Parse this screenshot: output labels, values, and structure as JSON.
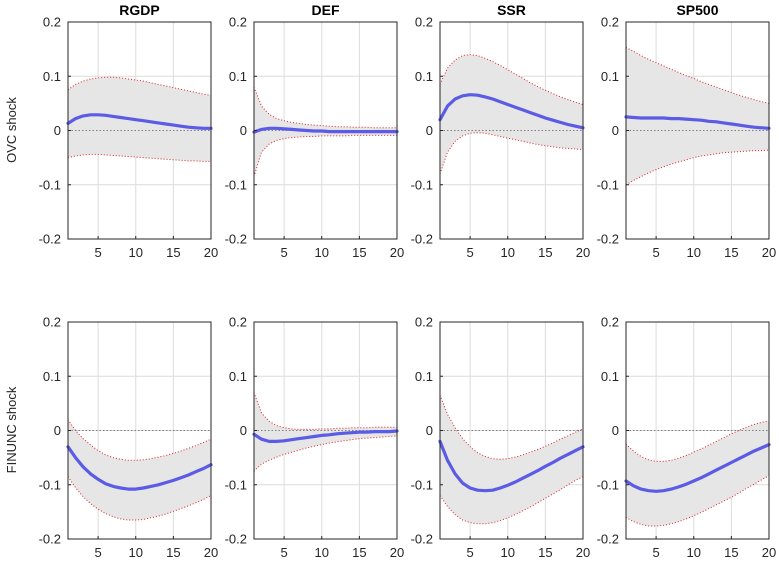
{
  "chart_data": {
    "type": "line",
    "columns": [
      "RGDP",
      "DEF",
      "SSR",
      "SP500"
    ],
    "rows": [
      "OVC shock",
      "FINUNC shock"
    ],
    "xlim": [
      1,
      20
    ],
    "ylim": [
      -0.2,
      0.2
    ],
    "xticks": [
      5,
      10,
      15,
      20
    ],
    "yticks": [
      -0.2,
      -0.1,
      0,
      0.1,
      0.2
    ],
    "grid": true,
    "zero_line": true,
    "colors": {
      "line": "#5b5be6",
      "band_fill": "#e6e6e6",
      "band_edge": "#e02020",
      "zero": "#808080",
      "grid": "#dcdcdc",
      "axis": "#262626"
    },
    "panels": [
      {
        "row": 0,
        "col": 0,
        "title": "RGDP",
        "x": [
          1,
          2,
          3,
          4,
          5,
          6,
          7,
          8,
          9,
          10,
          11,
          12,
          13,
          14,
          15,
          16,
          17,
          18,
          19,
          20
        ],
        "y": [
          0.013,
          0.022,
          0.027,
          0.029,
          0.029,
          0.028,
          0.026,
          0.024,
          0.022,
          0.02,
          0.018,
          0.016,
          0.014,
          0.012,
          0.01,
          0.008,
          0.006,
          0.005,
          0.004,
          0.004
        ],
        "upper": [
          0.075,
          0.085,
          0.091,
          0.095,
          0.097,
          0.098,
          0.098,
          0.097,
          0.095,
          0.093,
          0.091,
          0.088,
          0.085,
          0.082,
          0.079,
          0.076,
          0.073,
          0.07,
          0.067,
          0.065
        ],
        "lower": [
          -0.05,
          -0.047,
          -0.045,
          -0.044,
          -0.044,
          -0.045,
          -0.046,
          -0.047,
          -0.048,
          -0.049,
          -0.05,
          -0.051,
          -0.052,
          -0.053,
          -0.054,
          -0.055,
          -0.056,
          -0.056,
          -0.057,
          -0.057
        ]
      },
      {
        "row": 0,
        "col": 1,
        "title": "DEF",
        "x": [
          1,
          2,
          3,
          4,
          5,
          6,
          7,
          8,
          9,
          10,
          11,
          12,
          13,
          14,
          15,
          16,
          17,
          18,
          19,
          20
        ],
        "y": [
          -0.003,
          0.002,
          0.004,
          0.004,
          0.003,
          0.002,
          0.001,
          0.0,
          -0.001,
          -0.001,
          -0.002,
          -0.002,
          -0.002,
          -0.002,
          -0.002,
          -0.002,
          -0.002,
          -0.002,
          -0.002,
          -0.002
        ],
        "upper": [
          0.08,
          0.045,
          0.03,
          0.022,
          0.018,
          0.015,
          0.013,
          0.011,
          0.01,
          0.009,
          0.008,
          0.007,
          0.007,
          0.006,
          0.006,
          0.006,
          0.005,
          0.005,
          0.005,
          0.005
        ],
        "lower": [
          -0.085,
          -0.04,
          -0.025,
          -0.018,
          -0.015,
          -0.013,
          -0.012,
          -0.011,
          -0.011,
          -0.01,
          -0.01,
          -0.01,
          -0.01,
          -0.009,
          -0.009,
          -0.009,
          -0.009,
          -0.009,
          -0.009,
          -0.009
        ]
      },
      {
        "row": 0,
        "col": 2,
        "title": "SSR",
        "x": [
          1,
          2,
          3,
          4,
          5,
          6,
          7,
          8,
          9,
          10,
          11,
          12,
          13,
          14,
          15,
          16,
          17,
          18,
          19,
          20
        ],
        "y": [
          0.02,
          0.045,
          0.058,
          0.064,
          0.066,
          0.065,
          0.062,
          0.058,
          0.053,
          0.048,
          0.043,
          0.038,
          0.033,
          0.028,
          0.023,
          0.019,
          0.015,
          0.011,
          0.008,
          0.005
        ],
        "upper": [
          0.085,
          0.115,
          0.13,
          0.138,
          0.14,
          0.138,
          0.133,
          0.127,
          0.12,
          0.112,
          0.104,
          0.096,
          0.088,
          0.081,
          0.074,
          0.068,
          0.062,
          0.057,
          0.052,
          0.048
        ],
        "lower": [
          -0.08,
          -0.04,
          -0.02,
          -0.01,
          -0.005,
          -0.004,
          -0.005,
          -0.008,
          -0.011,
          -0.014,
          -0.017,
          -0.02,
          -0.023,
          -0.026,
          -0.028,
          -0.03,
          -0.032,
          -0.033,
          -0.034,
          -0.035
        ]
      },
      {
        "row": 0,
        "col": 3,
        "title": "SP500",
        "x": [
          1,
          2,
          3,
          4,
          5,
          6,
          7,
          8,
          9,
          10,
          11,
          12,
          13,
          14,
          15,
          16,
          17,
          18,
          19,
          20
        ],
        "y": [
          0.025,
          0.024,
          0.023,
          0.023,
          0.023,
          0.023,
          0.022,
          0.022,
          0.021,
          0.02,
          0.019,
          0.017,
          0.016,
          0.014,
          0.012,
          0.01,
          0.008,
          0.006,
          0.005,
          0.004
        ],
        "upper": [
          0.153,
          0.146,
          0.138,
          0.131,
          0.125,
          0.119,
          0.113,
          0.107,
          0.101,
          0.096,
          0.09,
          0.085,
          0.08,
          0.075,
          0.07,
          0.065,
          0.061,
          0.057,
          0.053,
          0.05
        ],
        "lower": [
          -0.1,
          -0.092,
          -0.085,
          -0.078,
          -0.072,
          -0.067,
          -0.062,
          -0.058,
          -0.054,
          -0.05,
          -0.047,
          -0.045,
          -0.043,
          -0.041,
          -0.04,
          -0.039,
          -0.038,
          -0.037,
          -0.037,
          -0.036
        ]
      },
      {
        "row": 1,
        "col": 0,
        "title": "",
        "x": [
          1,
          2,
          3,
          4,
          5,
          6,
          7,
          8,
          9,
          10,
          11,
          12,
          13,
          14,
          15,
          16,
          17,
          18,
          19,
          20
        ],
        "y": [
          -0.03,
          -0.05,
          -0.067,
          -0.08,
          -0.09,
          -0.098,
          -0.103,
          -0.106,
          -0.108,
          -0.108,
          -0.106,
          -0.103,
          -0.1,
          -0.096,
          -0.092,
          -0.087,
          -0.082,
          -0.076,
          -0.07,
          -0.063
        ],
        "upper": [
          0.02,
          0.0,
          -0.015,
          -0.027,
          -0.037,
          -0.045,
          -0.05,
          -0.053,
          -0.055,
          -0.055,
          -0.054,
          -0.052,
          -0.049,
          -0.046,
          -0.042,
          -0.038,
          -0.033,
          -0.028,
          -0.022,
          -0.016
        ],
        "lower": [
          -0.085,
          -0.105,
          -0.122,
          -0.135,
          -0.145,
          -0.153,
          -0.159,
          -0.163,
          -0.165,
          -0.165,
          -0.164,
          -0.161,
          -0.158,
          -0.154,
          -0.149,
          -0.144,
          -0.139,
          -0.133,
          -0.127,
          -0.12
        ]
      },
      {
        "row": 1,
        "col": 1,
        "title": "",
        "x": [
          1,
          2,
          3,
          4,
          5,
          6,
          7,
          8,
          9,
          10,
          11,
          12,
          13,
          14,
          15,
          16,
          17,
          18,
          19,
          20
        ],
        "y": [
          -0.007,
          -0.016,
          -0.02,
          -0.02,
          -0.019,
          -0.017,
          -0.015,
          -0.013,
          -0.011,
          -0.009,
          -0.008,
          -0.006,
          -0.005,
          -0.004,
          -0.003,
          -0.003,
          -0.002,
          -0.002,
          -0.002,
          -0.001
        ],
        "upper": [
          0.07,
          0.032,
          0.017,
          0.009,
          0.005,
          0.003,
          0.002,
          0.002,
          0.002,
          0.003,
          0.003,
          0.004,
          0.004,
          0.005,
          0.005,
          0.005,
          0.006,
          0.006,
          0.006,
          0.006
        ],
        "lower": [
          -0.075,
          -0.062,
          -0.055,
          -0.049,
          -0.044,
          -0.04,
          -0.036,
          -0.032,
          -0.029,
          -0.026,
          -0.023,
          -0.021,
          -0.019,
          -0.017,
          -0.015,
          -0.014,
          -0.013,
          -0.012,
          -0.011,
          -0.01
        ]
      },
      {
        "row": 1,
        "col": 2,
        "title": "",
        "x": [
          1,
          2,
          3,
          4,
          5,
          6,
          7,
          8,
          9,
          10,
          11,
          12,
          13,
          14,
          15,
          16,
          17,
          18,
          19,
          20
        ],
        "y": [
          -0.02,
          -0.055,
          -0.08,
          -0.097,
          -0.106,
          -0.11,
          -0.111,
          -0.11,
          -0.106,
          -0.101,
          -0.095,
          -0.088,
          -0.081,
          -0.074,
          -0.066,
          -0.059,
          -0.051,
          -0.044,
          -0.037,
          -0.03
        ],
        "upper": [
          0.065,
          0.03,
          0.005,
          -0.015,
          -0.03,
          -0.041,
          -0.048,
          -0.052,
          -0.053,
          -0.052,
          -0.049,
          -0.045,
          -0.04,
          -0.035,
          -0.029,
          -0.023,
          -0.016,
          -0.01,
          -0.003,
          0.003
        ],
        "lower": [
          -0.12,
          -0.14,
          -0.155,
          -0.165,
          -0.17,
          -0.172,
          -0.172,
          -0.17,
          -0.166,
          -0.161,
          -0.155,
          -0.148,
          -0.141,
          -0.133,
          -0.125,
          -0.117,
          -0.109,
          -0.1,
          -0.092,
          -0.085
        ]
      },
      {
        "row": 1,
        "col": 3,
        "title": "",
        "x": [
          1,
          2,
          3,
          4,
          5,
          6,
          7,
          8,
          9,
          10,
          11,
          12,
          13,
          14,
          15,
          16,
          17,
          18,
          19,
          20
        ],
        "y": [
          -0.093,
          -0.102,
          -0.108,
          -0.111,
          -0.112,
          -0.111,
          -0.108,
          -0.104,
          -0.099,
          -0.093,
          -0.087,
          -0.08,
          -0.073,
          -0.066,
          -0.059,
          -0.052,
          -0.045,
          -0.038,
          -0.032,
          -0.026
        ],
        "upper": [
          -0.025,
          -0.038,
          -0.048,
          -0.054,
          -0.057,
          -0.057,
          -0.055,
          -0.051,
          -0.046,
          -0.04,
          -0.034,
          -0.027,
          -0.02,
          -0.013,
          -0.006,
          0.0,
          0.006,
          0.011,
          0.015,
          0.018
        ],
        "lower": [
          -0.16,
          -0.168,
          -0.173,
          -0.176,
          -0.176,
          -0.175,
          -0.172,
          -0.168,
          -0.163,
          -0.157,
          -0.151,
          -0.144,
          -0.137,
          -0.13,
          -0.123,
          -0.115,
          -0.107,
          -0.099,
          -0.091,
          -0.083
        ]
      }
    ]
  }
}
